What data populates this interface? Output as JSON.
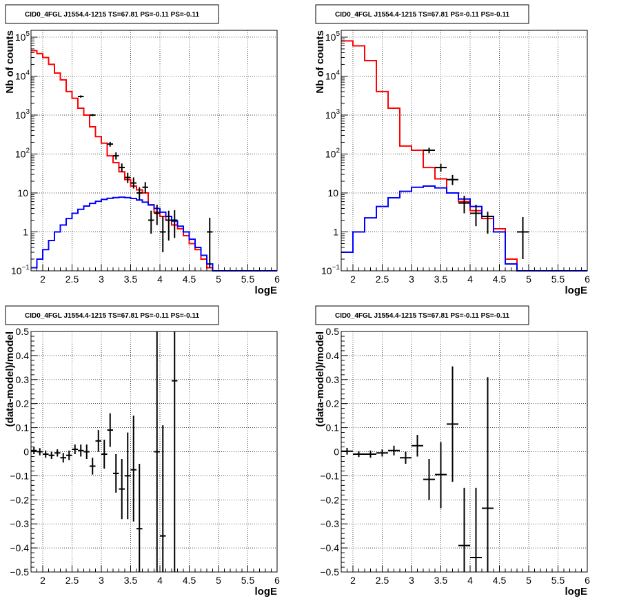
{
  "chart_data": [
    {
      "panel": "top-left",
      "type": "line",
      "title": "CID0_4FGL J1554.4-1215 TS=67.81 PS=-0.11 PS=-0.11",
      "xlabel": "logE",
      "ylabel": "Nb of counts",
      "xlim": [
        1.8,
        6.0
      ],
      "ylim": [
        0.1,
        150000
      ],
      "yscale": "log",
      "grid": true,
      "xticks": [
        "2",
        "2.5",
        "3",
        "3.5",
        "4",
        "4.5",
        "5",
        "5.5",
        "6"
      ],
      "yticks": [
        {
          "v": 0.1,
          "base": "10",
          "exp": "−1"
        },
        {
          "v": 1,
          "base": "1",
          "exp": ""
        },
        {
          "v": 10,
          "base": "10",
          "exp": ""
        },
        {
          "v": 100,
          "base": "10",
          "exp": "2"
        },
        {
          "v": 1000,
          "base": "10",
          "exp": "3"
        },
        {
          "v": 10000,
          "base": "10",
          "exp": "4"
        },
        {
          "v": 100000,
          "base": "10",
          "exp": "5"
        }
      ],
      "bin_edges": [
        1.8,
        1.9,
        2.0,
        2.1,
        2.2,
        2.3,
        2.4,
        2.5,
        2.6,
        2.7,
        2.8,
        2.9,
        3.0,
        3.1,
        3.2,
        3.3,
        3.4,
        3.5,
        3.6,
        3.7,
        3.8,
        3.9,
        4.0,
        4.1,
        4.2,
        4.3,
        4.4,
        4.5,
        4.6,
        4.7,
        4.8,
        4.9,
        5.0,
        5.1,
        5.2,
        5.3,
        5.4,
        5.5,
        5.6,
        5.7,
        5.8,
        5.9,
        6.0
      ],
      "series": [
        {
          "color": "#ff0000",
          "kind": "step",
          "values": [
            45000,
            38000,
            30000,
            20000,
            12000,
            8000,
            4000,
            2700,
            1500,
            1000,
            500,
            280,
            190,
            90,
            60,
            35,
            22,
            15,
            12,
            10,
            5,
            3.2,
            2.5,
            2,
            1.5,
            1.2,
            0.8,
            0.5,
            0.35,
            0.2,
            0.12,
            0.1,
            0.1,
            0.1,
            0.1,
            0.1,
            0.1,
            0.1,
            0.1,
            0.1,
            0.1,
            0.1
          ]
        },
        {
          "color": "#0000ff",
          "kind": "step",
          "values": [
            0.12,
            0.2,
            0.35,
            0.6,
            1.0,
            1.5,
            2.2,
            3.0,
            3.8,
            4.6,
            5.4,
            6.1,
            6.8,
            7.3,
            7.6,
            7.8,
            7.6,
            7.2,
            6.6,
            5.8,
            4.9,
            4.0,
            3.2,
            2.5,
            1.9,
            1.4,
            1.0,
            0.65,
            0.4,
            0.25,
            0.15,
            0.1,
            0.1,
            0.1,
            0.1,
            0.1,
            0.1,
            0.1,
            0.1,
            0.1,
            0.1,
            0.1
          ]
        },
        {
          "color": "#000000",
          "kind": "errorbar",
          "points": [
            {
              "x": 2.65,
              "y": 3000,
              "lo": 2800,
              "hi": 3200,
              "xerr": 0.05
            },
            {
              "x": 2.85,
              "y": 1000,
              "lo": 940,
              "hi": 1060,
              "xerr": 0.05
            },
            {
              "x": 3.15,
              "y": 180,
              "lo": 155,
              "hi": 205,
              "xerr": 0.05
            },
            {
              "x": 3.25,
              "y": 90,
              "lo": 72,
              "hi": 110,
              "xerr": 0.05
            },
            {
              "x": 3.35,
              "y": 45,
              "lo": 35,
              "hi": 57,
              "xerr": 0.05
            },
            {
              "x": 3.45,
              "y": 25,
              "lo": 18,
              "hi": 33,
              "xerr": 0.05
            },
            {
              "x": 3.55,
              "y": 18,
              "lo": 13,
              "hi": 25,
              "xerr": 0.05
            },
            {
              "x": 3.65,
              "y": 10,
              "lo": 6.5,
              "hi": 14,
              "xerr": 0.05
            },
            {
              "x": 3.75,
              "y": 14,
              "lo": 10,
              "hi": 19,
              "xerr": 0.05
            },
            {
              "x": 3.85,
              "y": 2.0,
              "lo": 0.9,
              "hi": 3.5,
              "xerr": 0.05
            },
            {
              "x": 3.95,
              "y": 3.0,
              "lo": 1.5,
              "hi": 5.0,
              "xerr": 0.05
            },
            {
              "x": 4.05,
              "y": 1.0,
              "lo": 0.3,
              "hi": 2.5,
              "xerr": 0.05
            },
            {
              "x": 4.15,
              "y": 2.0,
              "lo": 0.6,
              "hi": 3.5,
              "xerr": 0.05
            },
            {
              "x": 4.25,
              "y": 2.0,
              "lo": 0.7,
              "hi": 3.6,
              "xerr": 0.05
            },
            {
              "x": 4.85,
              "y": 1.0,
              "lo": 0.12,
              "hi": 2.3,
              "xerr": 0.05
            }
          ]
        }
      ]
    },
    {
      "panel": "top-right",
      "type": "line",
      "title": "CID0_4FGL J1554.4-1215 TS=67.81 PS=-0.11 PS=-0.11",
      "xlabel": "logE",
      "ylabel": "Nb of counts",
      "xlim": [
        1.8,
        6.0
      ],
      "ylim": [
        0.1,
        150000
      ],
      "yscale": "log",
      "grid": true,
      "xticks": [
        "2",
        "2.5",
        "3",
        "3.5",
        "4",
        "4.5",
        "5",
        "5.5",
        "6"
      ],
      "yticks": [
        {
          "v": 0.1,
          "base": "10",
          "exp": "−1"
        },
        {
          "v": 1,
          "base": "1",
          "exp": ""
        },
        {
          "v": 10,
          "base": "10",
          "exp": ""
        },
        {
          "v": 100,
          "base": "10",
          "exp": "2"
        },
        {
          "v": 1000,
          "base": "10",
          "exp": "3"
        },
        {
          "v": 10000,
          "base": "10",
          "exp": "4"
        },
        {
          "v": 100000,
          "base": "10",
          "exp": "5"
        }
      ],
      "bin_edges": [
        1.8,
        2.0,
        2.2,
        2.4,
        2.6,
        2.8,
        3.0,
        3.2,
        3.4,
        3.6,
        3.8,
        4.0,
        4.2,
        4.4,
        4.6,
        4.8,
        5.0,
        5.2,
        5.4,
        5.6,
        5.8,
        6.0
      ],
      "series": [
        {
          "color": "#ff0000",
          "kind": "step",
          "values": [
            80000,
            60000,
            25000,
            4000,
            1500,
            160,
            125,
            45,
            23,
            10,
            6,
            3.5,
            2.2,
            1.2,
            0.2,
            0.1,
            0.1,
            0.1,
            0.1,
            0.1,
            0.1
          ]
        },
        {
          "color": "#0000ff",
          "kind": "step",
          "values": [
            0.3,
            1.0,
            2.3,
            4.5,
            7.5,
            11,
            14,
            15,
            13.5,
            10,
            7,
            4.5,
            2.5,
            1.0,
            0.15,
            0.1,
            0.1,
            0.1,
            0.1,
            0.1,
            0.1
          ]
        },
        {
          "color": "#000000",
          "kind": "errorbar",
          "points": [
            {
              "x": 3.3,
              "y": 125,
              "lo": 105,
              "hi": 145,
              "xerr": 0.1
            },
            {
              "x": 3.5,
              "y": 45,
              "lo": 35,
              "hi": 56,
              "xerr": 0.1
            },
            {
              "x": 3.7,
              "y": 22,
              "lo": 16,
              "hi": 29,
              "xerr": 0.1
            },
            {
              "x": 3.9,
              "y": 5.5,
              "lo": 3.0,
              "hi": 8.5,
              "xerr": 0.1
            },
            {
              "x": 4.1,
              "y": 3.0,
              "lo": 1.4,
              "hi": 5.0,
              "xerr": 0.1
            },
            {
              "x": 4.3,
              "y": 2.5,
              "lo": 0.9,
              "hi": 3.3,
              "xerr": 0.1
            },
            {
              "x": 4.9,
              "y": 1.0,
              "lo": 0.2,
              "hi": 2.4,
              "xerr": 0.1
            }
          ]
        }
      ]
    },
    {
      "panel": "bottom-left",
      "type": "scatter",
      "title": "CID0_4FGL J1554.4-1215 TS=67.81 PS=-0.11 PS=-0.11",
      "xlabel": "logE",
      "ylabel": "(data-model)/model",
      "xlim": [
        1.8,
        6.0
      ],
      "ylim": [
        -0.5,
        0.5
      ],
      "grid": true,
      "xticks": [
        "2",
        "2.5",
        "3",
        "3.5",
        "4",
        "4.5",
        "5",
        "5.5",
        "6"
      ],
      "yticks": [
        "−0.5",
        "−0.4",
        "−0.3",
        "−0.2",
        "−0.1",
        "0",
        "0.1",
        "0.2",
        "0.3",
        "0.4",
        "0.5"
      ],
      "series": [
        {
          "color": "#000000",
          "kind": "errorbar",
          "points": [
            {
              "x": 1.85,
              "y": 0.005,
              "lo": -0.01,
              "hi": 0.02,
              "xerr": 0.05
            },
            {
              "x": 1.95,
              "y": 0.0,
              "lo": -0.015,
              "hi": 0.015,
              "xerr": 0.05
            },
            {
              "x": 2.05,
              "y": -0.01,
              "lo": -0.025,
              "hi": 0.005,
              "xerr": 0.05
            },
            {
              "x": 2.15,
              "y": -0.015,
              "lo": -0.03,
              "hi": 0.0,
              "xerr": 0.05
            },
            {
              "x": 2.25,
              "y": -0.005,
              "lo": -0.02,
              "hi": 0.01,
              "xerr": 0.05
            },
            {
              "x": 2.35,
              "y": -0.025,
              "lo": -0.045,
              "hi": -0.005,
              "xerr": 0.05
            },
            {
              "x": 2.45,
              "y": -0.015,
              "lo": -0.035,
              "hi": 0.005,
              "xerr": 0.05
            },
            {
              "x": 2.55,
              "y": 0.01,
              "lo": -0.01,
              "hi": 0.03,
              "xerr": 0.05
            },
            {
              "x": 2.65,
              "y": 0.005,
              "lo": -0.02,
              "hi": 0.03,
              "xerr": 0.05
            },
            {
              "x": 2.75,
              "y": 0.0,
              "lo": -0.03,
              "hi": 0.03,
              "xerr": 0.05
            },
            {
              "x": 2.85,
              "y": -0.06,
              "lo": -0.095,
              "hi": -0.025,
              "xerr": 0.05
            },
            {
              "x": 2.95,
              "y": 0.045,
              "lo": 0.0,
              "hi": 0.09,
              "xerr": 0.05
            },
            {
              "x": 3.05,
              "y": -0.01,
              "lo": -0.07,
              "hi": 0.05,
              "xerr": 0.05
            },
            {
              "x": 3.15,
              "y": 0.09,
              "lo": 0.02,
              "hi": 0.16,
              "xerr": 0.05
            },
            {
              "x": 3.25,
              "y": -0.09,
              "lo": -0.17,
              "hi": -0.01,
              "xerr": 0.05
            },
            {
              "x": 3.35,
              "y": -0.155,
              "lo": -0.28,
              "hi": -0.03,
              "xerr": 0.05
            },
            {
              "x": 3.45,
              "y": -0.1,
              "lo": -0.28,
              "hi": 0.08,
              "xerr": 0.05
            },
            {
              "x": 3.55,
              "y": -0.075,
              "lo": -0.29,
              "hi": 0.15,
              "xerr": 0.05
            },
            {
              "x": 3.65,
              "y": -0.32,
              "lo": -0.5,
              "hi": -0.05,
              "xerr": 0.05
            },
            {
              "x": 3.95,
              "y": 0.0,
              "lo": -0.5,
              "hi": 0.5,
              "xerr": 0.05
            },
            {
              "x": 4.05,
              "y": -0.35,
              "lo": -0.5,
              "hi": 0.11,
              "xerr": 0.05
            },
            {
              "x": 4.25,
              "y": 0.295,
              "lo": -0.5,
              "hi": 0.5,
              "xerr": 0.05
            }
          ]
        }
      ]
    },
    {
      "panel": "bottom-right",
      "type": "scatter",
      "title": "CID0_4FGL J1554.4-1215 TS=67.81 PS=-0.11 PS=-0.11",
      "xlabel": "logE",
      "ylabel": "(data-model)/model",
      "xlim": [
        1.8,
        6.0
      ],
      "ylim": [
        -0.5,
        0.5
      ],
      "grid": true,
      "xticks": [
        "2",
        "2.5",
        "3",
        "3.5",
        "4",
        "4.5",
        "5",
        "5.5",
        "6"
      ],
      "yticks": [
        "−0.5",
        "−0.4",
        "−0.3",
        "−0.2",
        "−0.1",
        "0",
        "0.1",
        "0.2",
        "0.3",
        "0.4",
        "0.5"
      ],
      "series": [
        {
          "color": "#000000",
          "kind": "errorbar",
          "points": [
            {
              "x": 1.9,
              "y": 0.002,
              "lo": -0.012,
              "hi": 0.016,
              "xerr": 0.1
            },
            {
              "x": 2.1,
              "y": -0.01,
              "lo": -0.022,
              "hi": 0.002,
              "xerr": 0.1
            },
            {
              "x": 2.3,
              "y": -0.01,
              "lo": -0.025,
              "hi": 0.005,
              "xerr": 0.1
            },
            {
              "x": 2.5,
              "y": -0.005,
              "lo": -0.02,
              "hi": 0.01,
              "xerr": 0.1
            },
            {
              "x": 2.7,
              "y": 0.005,
              "lo": -0.015,
              "hi": 0.025,
              "xerr": 0.1
            },
            {
              "x": 2.9,
              "y": -0.025,
              "lo": -0.05,
              "hi": 0.0,
              "xerr": 0.1
            },
            {
              "x": 3.1,
              "y": 0.025,
              "lo": -0.02,
              "hi": 0.07,
              "xerr": 0.1
            },
            {
              "x": 3.3,
              "y": -0.115,
              "lo": -0.2,
              "hi": -0.03,
              "xerr": 0.1
            },
            {
              "x": 3.5,
              "y": -0.095,
              "lo": -0.235,
              "hi": 0.04,
              "xerr": 0.1
            },
            {
              "x": 3.7,
              "y": 0.115,
              "lo": -0.125,
              "hi": 0.355,
              "xerr": 0.1
            },
            {
              "x": 3.9,
              "y": -0.39,
              "lo": -0.5,
              "hi": -0.15,
              "xerr": 0.1
            },
            {
              "x": 4.1,
              "y": -0.44,
              "lo": -0.5,
              "hi": -0.15,
              "xerr": 0.1
            },
            {
              "x": 4.3,
              "y": -0.235,
              "lo": -0.5,
              "hi": 0.31,
              "xerr": 0.1
            }
          ]
        }
      ]
    }
  ]
}
